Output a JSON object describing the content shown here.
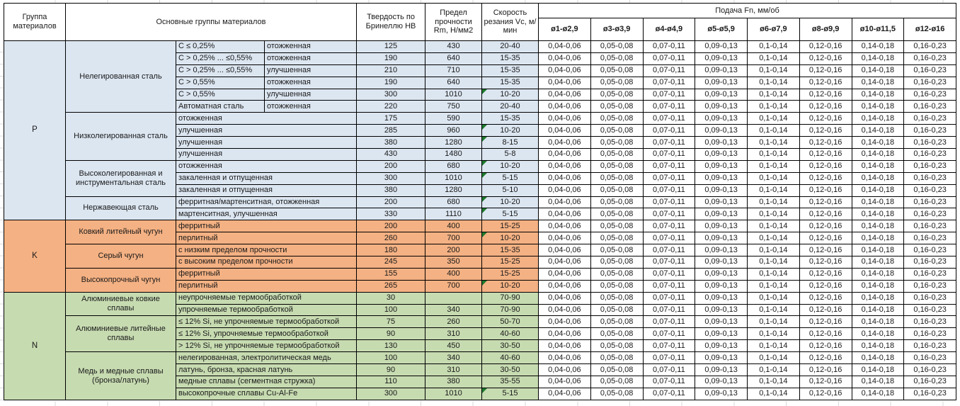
{
  "table": {
    "header": {
      "col_group": "Группа материалов",
      "col_main_groups": "Основные группы материалов",
      "col_hardness": "Твердость по Бринеллю HB",
      "col_strength": "Предел прочности Rm, Н/мм2",
      "col_speed": "Скорость резания Vc, м/мин",
      "col_feed": "Подача Fn, мм/об",
      "feed_diameters": [
        "ø1-ø2,9",
        "ø3-ø3,9",
        "ø4-ø4,9",
        "ø5-ø5,9",
        "ø6-ø7,9",
        "ø8-ø9,9",
        "ø10-ø11,5",
        "ø12-ø16"
      ]
    },
    "feed_values": [
      "0,04-0,06",
      "0,05-0,08",
      "0,07-0,11",
      "0,09-0,13",
      "0,1-0,14",
      "0,12-0,16",
      "0,14-0,18",
      "0,16-0,23"
    ],
    "flag_color": "#1f7a2e",
    "groups": [
      {
        "letter": "P",
        "color": "#DCE6F1",
        "subgroups": [
          {
            "name": "Нелегированная сталь",
            "rows": [
              {
                "spec": "C ≤ 0,25%",
                "state": "отожженная",
                "hb": "125",
                "rm": "430",
                "vc": "20-40",
                "flag": false
              },
              {
                "spec": "C > 0,25% ... ≤0,55%",
                "state": "отожженная",
                "hb": "190",
                "rm": "640",
                "vc": "15-35",
                "flag": false
              },
              {
                "spec": "C > 0,25% ... ≤0,55%",
                "state": "улучшенная",
                "hb": "210",
                "rm": "710",
                "vc": "15-35",
                "flag": false
              },
              {
                "spec": "C > 0,55%",
                "state": "отожженная",
                "hb": "190",
                "rm": "640",
                "vc": "15-35",
                "flag": false
              },
              {
                "spec": "C > 0,55%",
                "state": "улучшенная",
                "hb": "300",
                "rm": "1010",
                "vc": "10-20",
                "flag": true
              },
              {
                "spec": "Автоматная сталь",
                "state": "отожженная",
                "hb": "220",
                "rm": "750",
                "vc": "20-40",
                "flag": false
              }
            ]
          },
          {
            "name": "Низколегированная сталь",
            "rows": [
              {
                "desc": "отожженная",
                "hb": "175",
                "rm": "590",
                "vc": "15-35",
                "flag": false
              },
              {
                "desc": "улучшенная",
                "hb": "285",
                "rm": "960",
                "vc": "10-20",
                "flag": true
              },
              {
                "desc": "улучшенная",
                "hb": "380",
                "rm": "1280",
                "vc": "8-15",
                "flag": true
              },
              {
                "desc": "улучшенная",
                "hb": "430",
                "rm": "1480",
                "vc": "5-8",
                "flag": false
              }
            ]
          },
          {
            "name": "Высоколегированная и инструментальная сталь",
            "rows": [
              {
                "desc": "отожженная",
                "hb": "200",
                "rm": "680",
                "vc": "10-20",
                "flag": true
              },
              {
                "desc": "закаленная и отпущенная",
                "hb": "300",
                "rm": "1010",
                "vc": "5-15",
                "flag": true
              },
              {
                "desc": "закаленная и отпущенная",
                "hb": "380",
                "rm": "1280",
                "vc": "5-10",
                "flag": false
              }
            ]
          },
          {
            "name": "Нержавеющая сталь",
            "rows": [
              {
                "desc": "ферритная/мартенситная, отожженная",
                "hb": "200",
                "rm": "680",
                "vc": "10-20",
                "flag": true
              },
              {
                "desc": "мартенситная, улучшенная",
                "hb": "330",
                "rm": "1110",
                "vc": "5-15",
                "flag": true
              }
            ]
          }
        ]
      },
      {
        "letter": "K",
        "color": "#F4B183",
        "subgroups": [
          {
            "name": "Ковкий литейный чугун",
            "rows": [
              {
                "desc": "ферритный",
                "hb": "200",
                "rm": "400",
                "vc": "15-25",
                "flag": false
              },
              {
                "desc": "перлитный",
                "hb": "260",
                "rm": "700",
                "vc": "10-20",
                "flag": true
              }
            ]
          },
          {
            "name": "Серый чугун",
            "rows": [
              {
                "desc": "с низким пределом прочности",
                "hb": "180",
                "rm": "200",
                "vc": "15-35",
                "flag": false
              },
              {
                "desc": "с высоким пределом прочности",
                "hb": "245",
                "rm": "350",
                "vc": "15-25",
                "flag": false
              }
            ]
          },
          {
            "name": "Высокопрочный чугун",
            "rows": [
              {
                "desc": "ферритный",
                "hb": "155",
                "rm": "400",
                "vc": "15-25",
                "flag": false
              },
              {
                "desc": "перлитный",
                "hb": "265",
                "rm": "700",
                "vc": "10-20",
                "flag": true
              }
            ]
          }
        ]
      },
      {
        "letter": "N",
        "color": "#C7DBB1",
        "subgroups": [
          {
            "name": "Алюминиевые ковкие сплавы",
            "rows": [
              {
                "desc": "неупрочняемые термообработкой",
                "hb": "30",
                "rm": "",
                "vc": "70-90",
                "flag": false
              },
              {
                "desc": "упрочняемые термообработкой",
                "hb": "100",
                "rm": "340",
                "vc": "70-90",
                "flag": false
              }
            ]
          },
          {
            "name": "Алюминиевые литейные сплавы",
            "rows": [
              {
                "desc": "≤ 12% Si, не упрочняемые термообработкой",
                "hb": "75",
                "rm": "260",
                "vc": "50-70",
                "flag": false
              },
              {
                "desc": "≤ 12% Si, упрочняемые термообработкой",
                "hb": "90",
                "rm": "310",
                "vc": "40-60",
                "flag": false
              },
              {
                "desc": "> 12% Si, не упрочняемые термообработкой",
                "hb": "130",
                "rm": "450",
                "vc": "30-50",
                "flag": false
              }
            ]
          },
          {
            "name": "Медь и медные сплавы (бронза/латунь)",
            "rows": [
              {
                "desc": "нелегированная, электролитическая медь",
                "hb": "100",
                "rm": "340",
                "vc": "40-60",
                "flag": false
              },
              {
                "desc": "латунь, бронза, красная латунь",
                "hb": "90",
                "rm": "310",
                "vc": "30-50",
                "flag": false
              },
              {
                "desc": "медные сплавы (сегментная стружка)",
                "hb": "110",
                "rm": "380",
                "vc": "35-55",
                "flag": false
              },
              {
                "desc": "высокопрочные сплавы Cu-Al-Fe",
                "hb": "300",
                "rm": "1010",
                "vc": "5-15",
                "flag": true
              }
            ]
          }
        ]
      }
    ]
  }
}
